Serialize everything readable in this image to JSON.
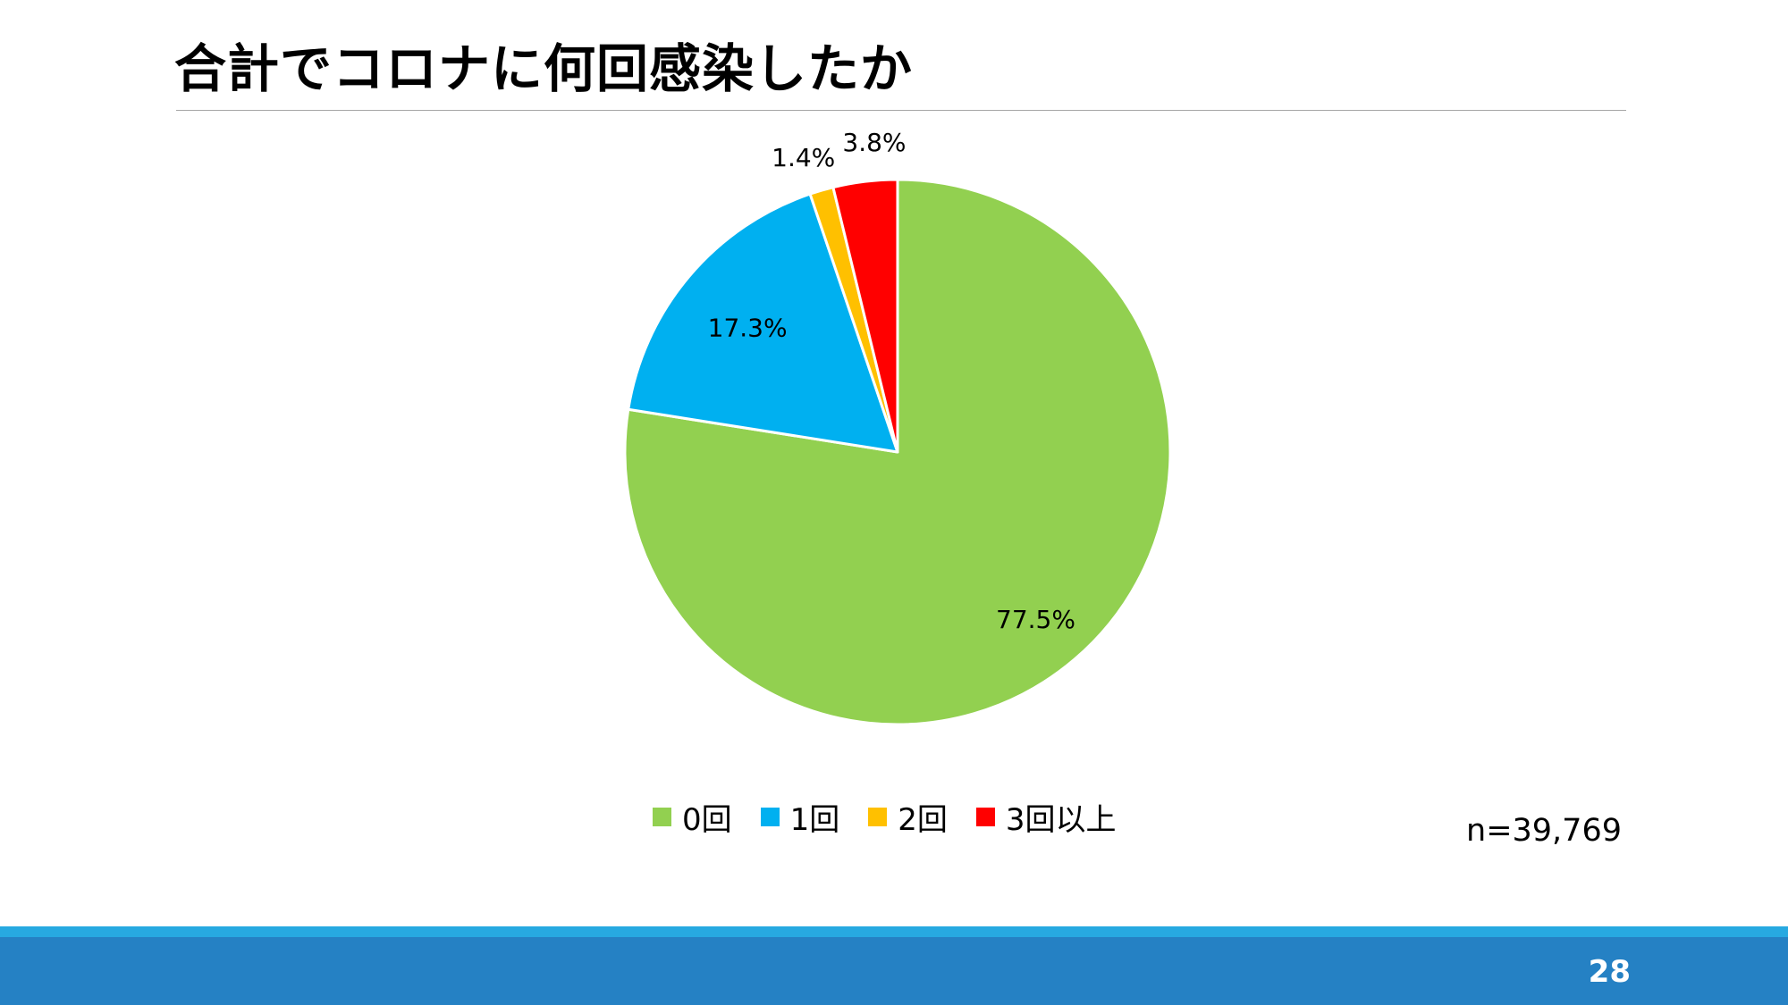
{
  "slide": {
    "title": "合計でコロナに何回感染したか",
    "sample_size": "n=39,769",
    "page_number": "28"
  },
  "colors": {
    "footer_accent": "#27a9e1",
    "footer_bar": "#2581c4",
    "title_rule": "#a6a6a6"
  },
  "chart_data": {
    "type": "pie",
    "start_angle": "12 o'clock",
    "direction": "clockwise",
    "categories": [
      "0回",
      "1回",
      "2回",
      "3回以上"
    ],
    "values": [
      77.5,
      17.3,
      1.4,
      3.8
    ],
    "data_labels": [
      "77.5%",
      "17.3%",
      "1.4%",
      "3.8%"
    ],
    "colors": [
      "#92d050",
      "#00b0f0",
      "#ffc000",
      "#ff0000"
    ],
    "legend": "bottom"
  }
}
